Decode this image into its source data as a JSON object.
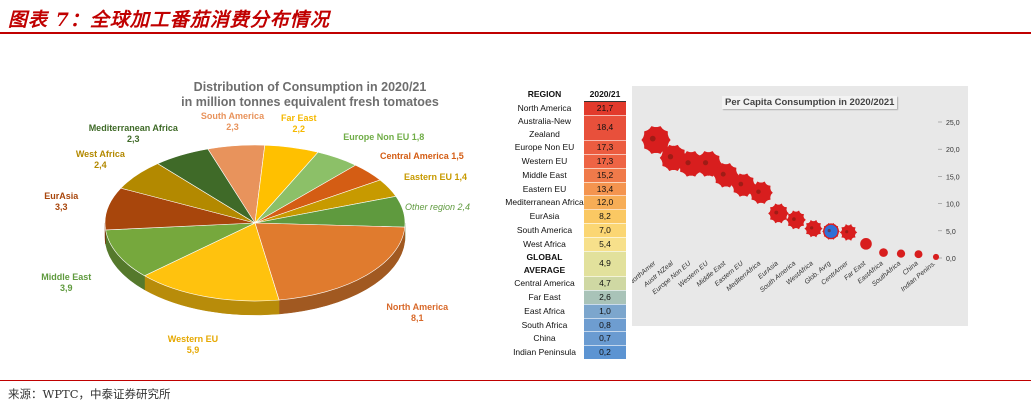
{
  "header": {
    "title": "图表 7：全球加工番茄消费分布情况"
  },
  "footer": {
    "source": "来源：WPTC，中泰证券研究所"
  },
  "chart_data": [
    {
      "type": "pie",
      "title": "Distribution of Consumption in 2020/21",
      "subtitle": "in million tonnes equivalent fresh tomatoes",
      "slices": [
        {
          "name": "South America",
          "label": "South America",
          "value": 2.3,
          "value_text": "2,3",
          "color": "#e8935c",
          "text_color": "#e8935c"
        },
        {
          "name": "Far East",
          "label": "Far East",
          "value": 2.2,
          "value_text": "2,2",
          "color": "#ffc000",
          "text_color": "#f5b800"
        },
        {
          "name": "Europe Non EU",
          "label": "Europe Non EU",
          "value": 1.8,
          "value_text": "1,8",
          "color": "#8cc068",
          "text_color": "#70ad47"
        },
        {
          "name": "Central America",
          "label": "Central America",
          "value": 1.5,
          "value_text": "1,5",
          "color": "#d45d14",
          "text_color": "#d45d14"
        },
        {
          "name": "Eastern EU",
          "label": "Eastern EU",
          "value": 1.4,
          "value_text": "1,4",
          "color": "#c79a00",
          "text_color": "#c79a00"
        },
        {
          "name": "Other region",
          "label": "Other region",
          "value": 2.4,
          "value_text": "2,4",
          "color": "#5f9a3e",
          "text_color": "#5f9a3e"
        },
        {
          "name": "North America",
          "label": "North America",
          "value": 8.1,
          "value_text": "8,1",
          "color": "#e07b2e",
          "text_color": "#d8692a"
        },
        {
          "name": "Western EU",
          "label": "Western EU",
          "value": 5.9,
          "value_text": "5,9",
          "color": "#ffc20e",
          "text_color": "#e6a800"
        },
        {
          "name": "Middle East",
          "label": "Middle East",
          "value": 3.9,
          "value_text": "3,9",
          "color": "#76a83d",
          "text_color": "#5f9a3e"
        },
        {
          "name": "EurAsia",
          "label": "EurAsia",
          "value": 3.3,
          "value_text": "3,3",
          "color": "#a8460c",
          "text_color": "#a8460c"
        },
        {
          "name": "West Africa",
          "label": "West Africa",
          "value": 2.4,
          "value_text": "2,4",
          "color": "#b38900",
          "text_color": "#b38900"
        },
        {
          "name": "Mediterranean Africa",
          "label": "Mediterranean Africa",
          "value": 2.3,
          "value_text": "2,3",
          "color": "#3f6a28",
          "text_color": "#3f6a28"
        }
      ]
    },
    {
      "type": "table",
      "columns": [
        "REGION",
        "2020/21"
      ],
      "rows": [
        {
          "region": "North America",
          "value": 21.7,
          "value_text": "21,7",
          "color": "#e23a2c",
          "bold": false
        },
        {
          "region": "Australia-New Zealand",
          "value": 18.4,
          "value_text": "18,4",
          "color": "#e8503b",
          "bold": false
        },
        {
          "region": "Europe Non EU",
          "value": 17.3,
          "value_text": "17,3",
          "color": "#ec5c40",
          "bold": false
        },
        {
          "region": "Western EU",
          "value": 17.3,
          "value_text": "17,3",
          "color": "#ee6444",
          "bold": false
        },
        {
          "region": "Middle East",
          "value": 15.2,
          "value_text": "15,2",
          "color": "#f07a4a",
          "bold": false
        },
        {
          "region": "Eastern EU",
          "value": 13.4,
          "value_text": "13,4",
          "color": "#f4944f",
          "bold": false
        },
        {
          "region": "Mediterranean Africa",
          "value": 12.0,
          "value_text": "12,0",
          "color": "#f7ad56",
          "bold": false
        },
        {
          "region": "EurAsia",
          "value": 8.2,
          "value_text": "8,2",
          "color": "#fac863",
          "bold": false
        },
        {
          "region": "South America",
          "value": 7.0,
          "value_text": "7,0",
          "color": "#fbd673",
          "bold": false
        },
        {
          "region": "West Africa",
          "value": 5.4,
          "value_text": "5,4",
          "color": "#f7e08b",
          "bold": false
        },
        {
          "region": "GLOBAL AVERAGE",
          "value": 4.9,
          "value_text": "4,9",
          "color": "#e2e19c",
          "bold": true
        },
        {
          "region": "Central America",
          "value": 4.7,
          "value_text": "4,7",
          "color": "#cfd8a3",
          "bold": false
        },
        {
          "region": "Far East",
          "value": 2.6,
          "value_text": "2,6",
          "color": "#a9c3b8",
          "bold": false
        },
        {
          "region": "East Africa",
          "value": 1.0,
          "value_text": "1,0",
          "color": "#7ca6cd",
          "bold": false
        },
        {
          "region": "South Africa",
          "value": 0.8,
          "value_text": "0,8",
          "color": "#6e9dd0",
          "bold": false
        },
        {
          "region": "China",
          "value": 0.7,
          "value_text": "0,7",
          "color": "#6a9bd1",
          "bold": false
        },
        {
          "region": "Indian Peninsula",
          "value": 0.2,
          "value_text": "0,2",
          "color": "#5c94d2",
          "bold": false
        }
      ]
    },
    {
      "type": "scatter",
      "title": "Per Capita Consumption in 2020/2021",
      "ylim": [
        0,
        25
      ],
      "yticks": [
        "25,0",
        "20,0",
        "15,0",
        "10,0",
        "5,0",
        "0,0"
      ],
      "yticks_values": [
        25,
        20,
        15,
        10,
        5,
        0
      ],
      "categories": [
        "NorthAmer",
        "Austr NZeal",
        "Europe Non EU",
        "Western EU",
        "Middle East",
        "Eastern EU",
        "MediterrAfrica",
        "EurAsia",
        "South America",
        "WestAfrica",
        "Glob. Avrg",
        "CentrAmer",
        "Far East",
        "EastAfrica",
        "SouthAfrica",
        "China",
        "Indian Penins."
      ],
      "values": [
        21.7,
        18.4,
        17.3,
        17.3,
        15.2,
        13.4,
        12.0,
        8.2,
        7.0,
        5.4,
        4.9,
        4.7,
        2.6,
        1.0,
        0.8,
        0.7,
        0.2
      ],
      "highlight": "Glob. Avrg",
      "marker_color": "#d81e1e",
      "highlight_color": "#2f6fd6"
    }
  ]
}
